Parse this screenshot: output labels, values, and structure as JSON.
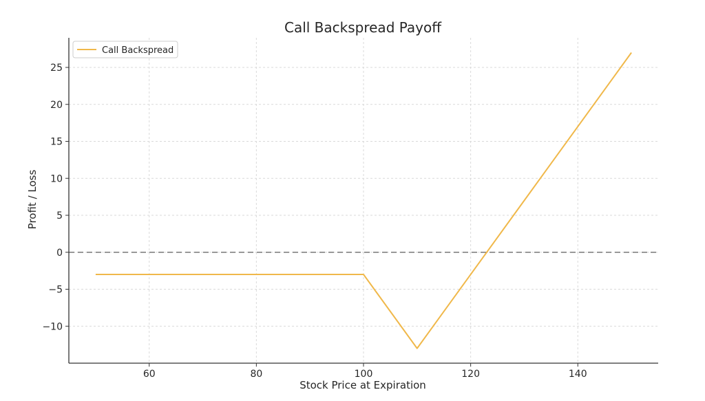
{
  "chart_data": {
    "type": "line",
    "title": "Call Backspread Payoff",
    "xlabel": "Stock Price at Expiration",
    "ylabel": "Profit / Loss",
    "xlim": [
      45,
      155
    ],
    "ylim": [
      -15,
      29
    ],
    "xticks": [
      60,
      80,
      100,
      120,
      140
    ],
    "yticks": [
      -10,
      -5,
      0,
      5,
      10,
      15,
      20,
      25
    ],
    "grid": true,
    "legend": "top-left",
    "reference_line": {
      "y": 0,
      "style": "dashed",
      "color": "#777777"
    },
    "series": [
      {
        "name": "Call Backspread",
        "color": "#f0b84a",
        "x": [
          50,
          100,
          110,
          150
        ],
        "y": [
          -3,
          -3,
          -13,
          27
        ]
      }
    ]
  }
}
